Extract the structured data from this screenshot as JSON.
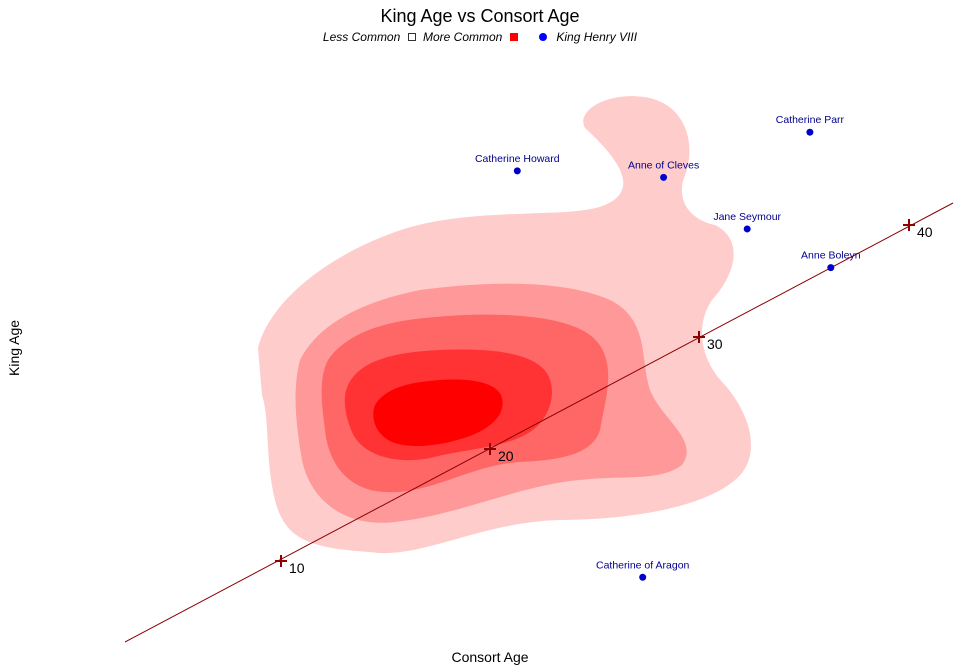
{
  "chart_data": {
    "type": "density-contour-with-points",
    "title": "King Age vs Consort Age",
    "xlabel": "Consort Age",
    "ylabel": "King Age",
    "legend": {
      "position": "top",
      "less_common_label": "Less Common",
      "more_common_label": "More Common",
      "king_label": "King Henry VIII"
    },
    "colors": {
      "density_levels": [
        "#ffcccc",
        "#ff9999",
        "#ff6666",
        "#ff3333",
        "#ff0000"
      ],
      "points": "#0000cc",
      "point_labels": "#00008b",
      "reference_line": "#8b0000",
      "tick_marks": "#8b0000"
    },
    "grid": false,
    "reference_line": {
      "description": "Diagonal where King Age equals Consort Age",
      "ticks": [
        "10",
        "20",
        "30",
        "40"
      ]
    },
    "points": [
      {
        "name": "Catherine of Aragon",
        "consort_age": 23,
        "king_age": 17.5
      },
      {
        "name": "Anne Boleyn",
        "consort_age": 32,
        "king_age": 41.5
      },
      {
        "name": "Jane Seymour",
        "consort_age": 28,
        "king_age": 44.5
      },
      {
        "name": "Anne of Cleves",
        "consort_age": 24,
        "king_age": 48.5
      },
      {
        "name": "Catherine Howard",
        "consort_age": 17,
        "king_age": 49
      },
      {
        "name": "Catherine Parr",
        "consort_age": 31,
        "king_age": 52
      }
    ]
  }
}
